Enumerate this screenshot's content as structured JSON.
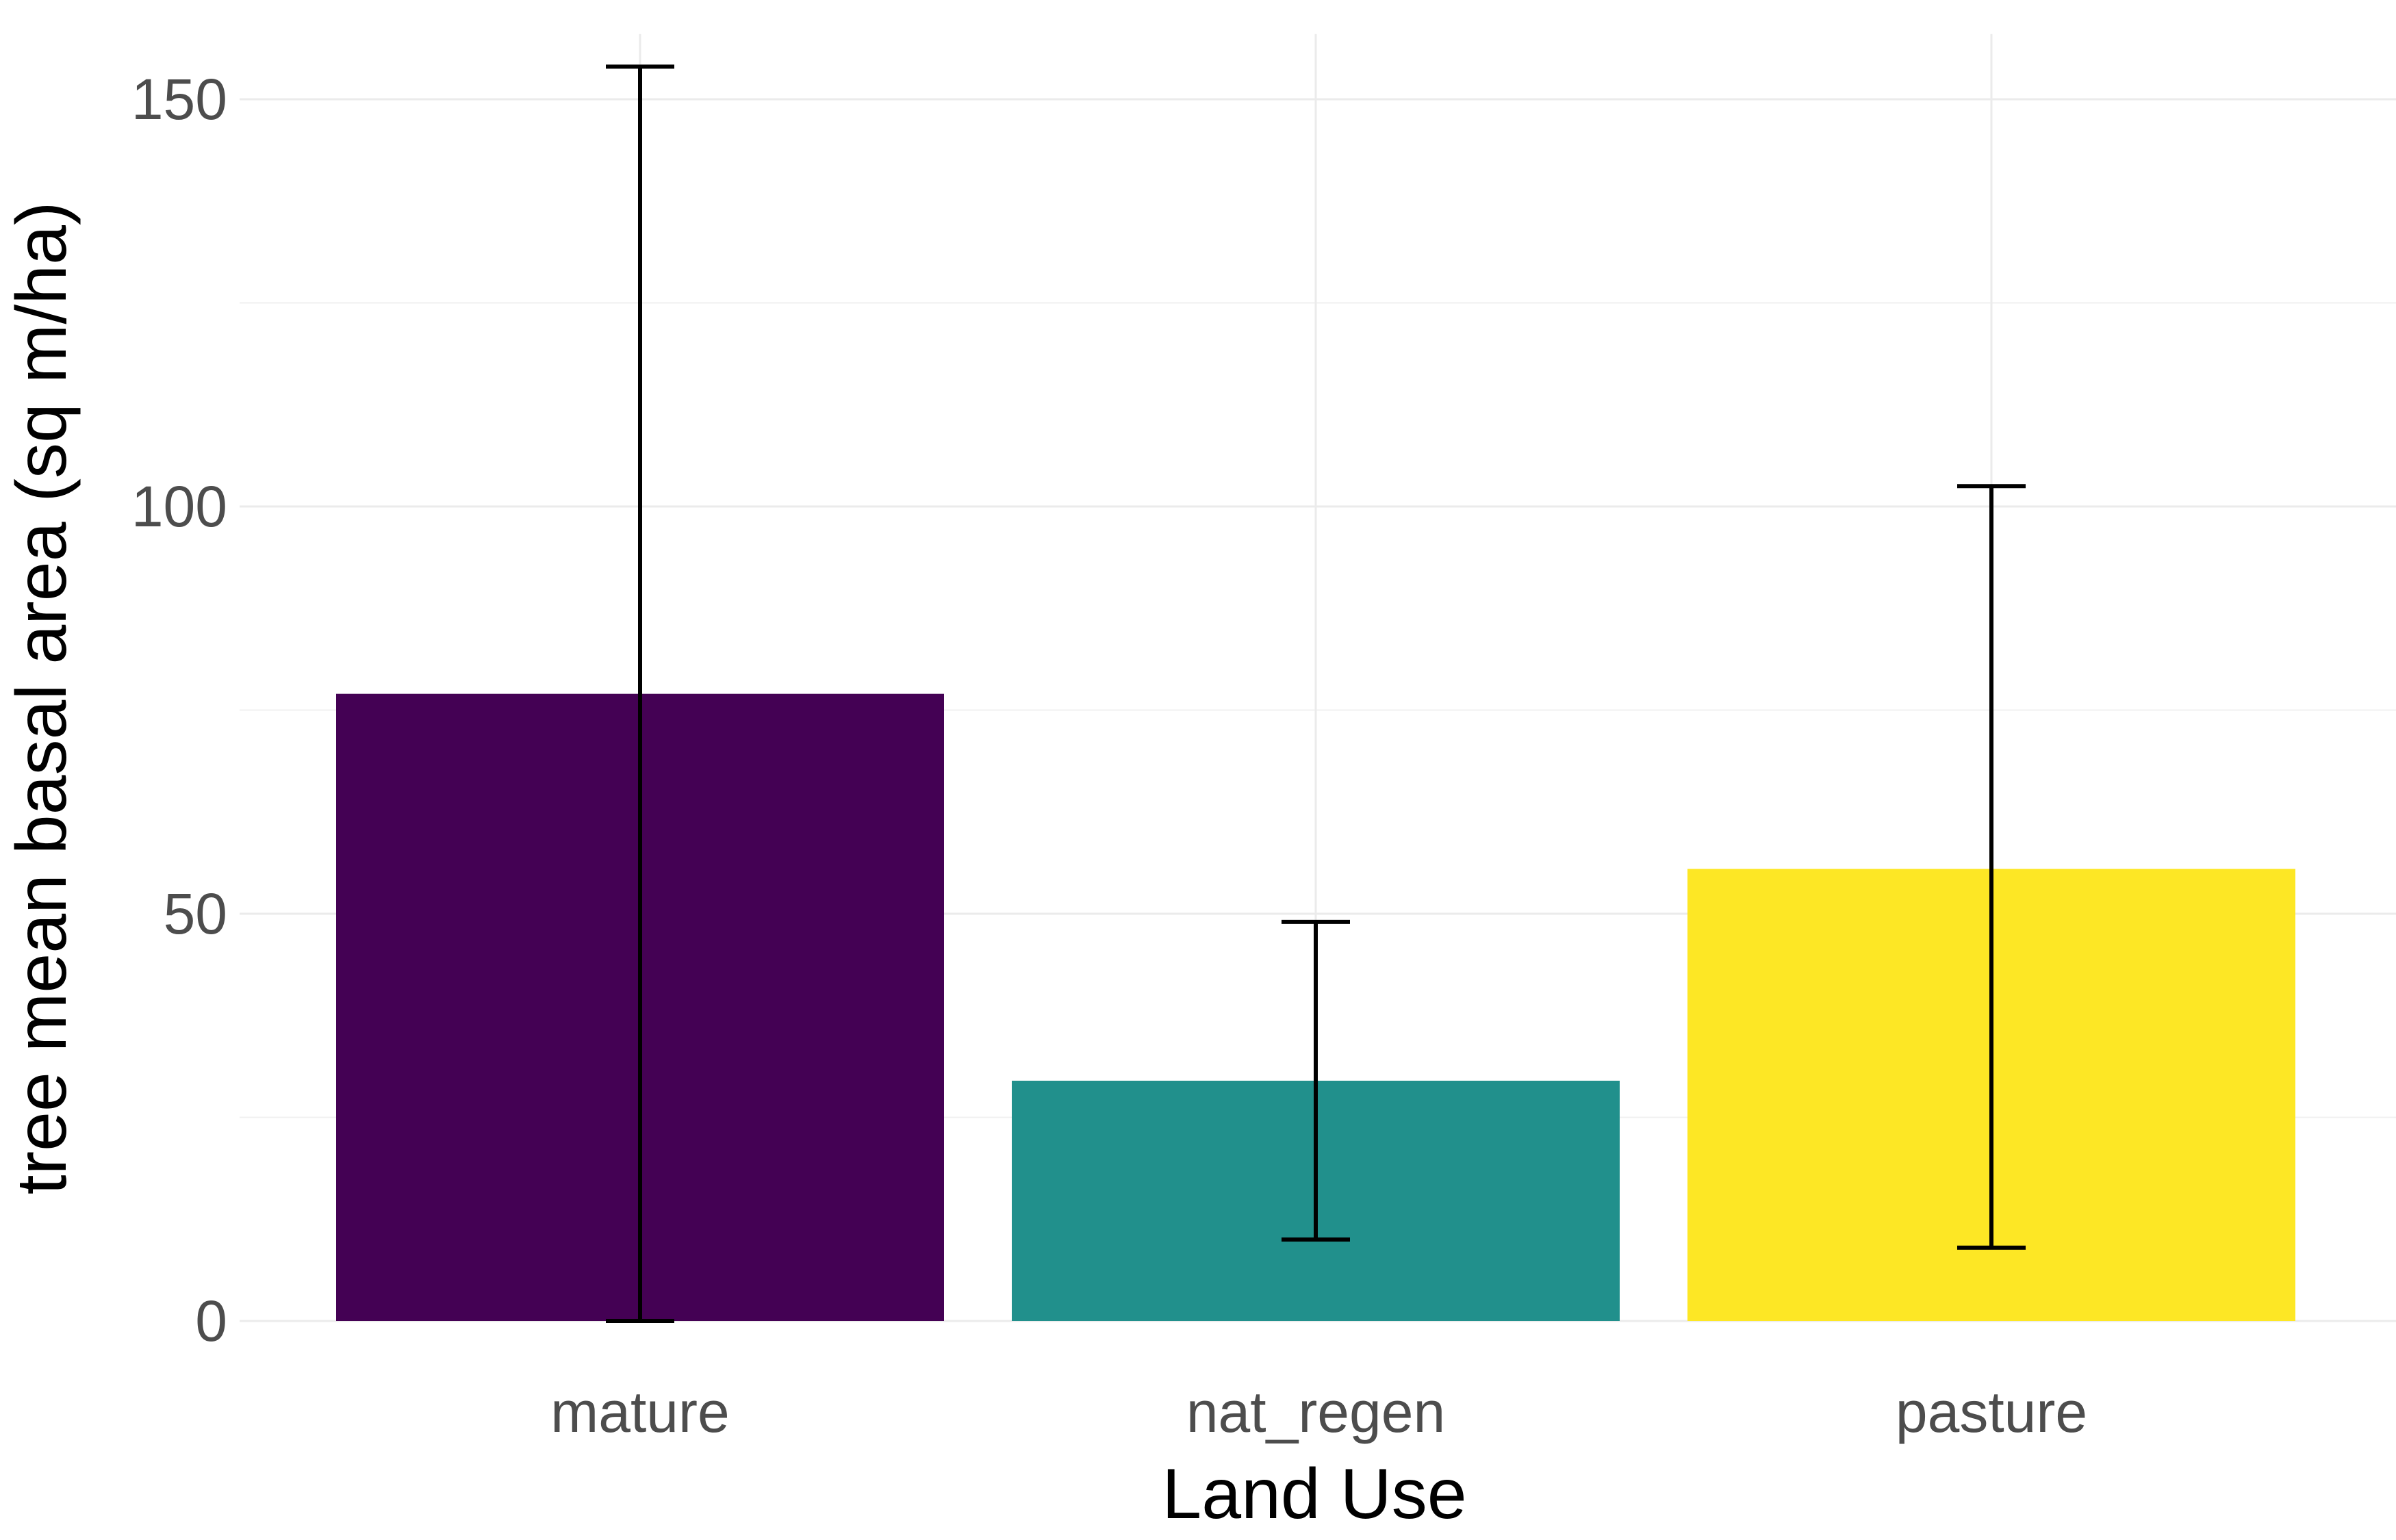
{
  "chart_data": {
    "type": "bar",
    "title": "",
    "xlabel": "Land Use",
    "ylabel": "tree mean basal area (sq m/ha)",
    "categories": [
      "mature",
      "nat_regen",
      "pasture"
    ],
    "values": [
      77,
      29.5,
      55.5
    ],
    "error_bars": [
      {
        "low": 0,
        "high": 154
      },
      {
        "low": 10,
        "high": 49
      },
      {
        "low": 9,
        "high": 102.5
      }
    ],
    "colors": [
      "#440154",
      "#21908C",
      "#FDE725"
    ],
    "ylim": [
      0,
      158
    ],
    "yticks": [
      0,
      50,
      100,
      150
    ],
    "grid": true,
    "legend": "none"
  }
}
